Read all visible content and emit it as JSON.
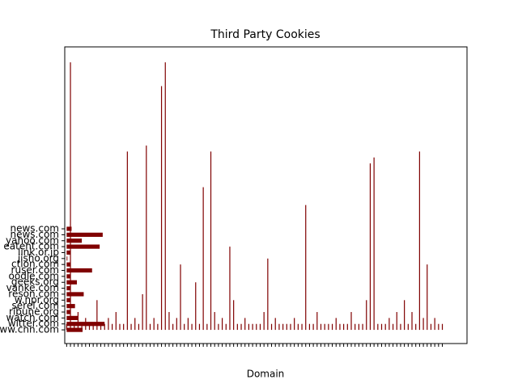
{
  "chart_data": {
    "type": "bar",
    "title": "Third Party Cookies",
    "x_label": "Domain",
    "color": "#800000",
    "categories": [
      null,
      null,
      null,
      null,
      null,
      null,
      null,
      null,
      null,
      null,
      null,
      null,
      null,
      null,
      null,
      null,
      null,
      null,
      null,
      null,
      null,
      null,
      null,
      null,
      null,
      null,
      null,
      null,
      null,
      null,
      null,
      null,
      null,
      null,
      null,
      null,
      null,
      null,
      null,
      null,
      null,
      null,
      null,
      null,
      null,
      null,
      null,
      null,
      null,
      null,
      null,
      null,
      null,
      null,
      null,
      null,
      null,
      null,
      null,
      null,
      null,
      null,
      null,
      null,
      null,
      null,
      null,
      null,
      null,
      null,
      null,
      null,
      null,
      null,
      null,
      null,
      null,
      null,
      null,
      null,
      null,
      null,
      null,
      null,
      null,
      null,
      null,
      null,
      null,
      null,
      null,
      null,
      null,
      null,
      null,
      null,
      null,
      null,
      null,
      null
    ],
    "values": [
      1,
      45,
      1,
      3,
      1,
      2,
      1,
      1,
      5,
      1,
      1,
      2,
      1,
      3,
      1,
      1,
      30,
      1,
      2,
      1,
      6,
      31,
      1,
      2,
      1,
      41,
      45,
      3,
      1,
      2,
      11,
      1,
      2,
      1,
      8,
      1,
      24,
      1,
      30,
      3,
      1,
      2,
      1,
      14,
      5,
      1,
      1,
      2,
      1,
      1,
      1,
      1,
      3,
      12,
      1,
      2,
      1,
      1,
      1,
      1,
      2,
      1,
      1,
      21,
      1,
      1,
      3,
      1,
      1,
      1,
      1,
      2,
      1,
      1,
      1,
      3,
      1,
      1,
      1,
      5,
      28,
      29,
      1,
      1,
      1,
      2,
      1,
      3,
      1,
      5,
      1,
      3,
      1,
      30,
      2,
      11,
      1,
      2,
      1,
      1
    ],
    "y_categories": [
      "www.cnn.com",
      "witter.com",
      "watch.com",
      "ribune.org",
      "serel.com",
      "w.npr.org",
      "reson.com",
      "vanke.com",
      "geeks.org",
      "oodle.com",
      "ruser.com",
      "ction.com",
      "jisho.org",
      "link.or.jp",
      "eatent.com",
      "yahoo.com",
      "news.com",
      "news.com"
    ],
    "y_values": [
      4.2,
      10,
      3,
      1,
      2.2,
      1,
      4.5,
      1,
      2.7,
      1,
      6.7,
      1,
      0.2,
      1,
      8.7,
      4,
      9.5,
      1.3
    ],
    "xlim": [
      -0.5,
      105.5
    ],
    "ylim": [
      -2.3,
      47.6
    ]
  }
}
